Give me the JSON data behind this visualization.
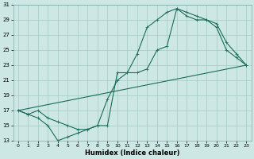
{
  "xlabel": "Humidex (Indice chaleur)",
  "bg_color": "#cde8e4",
  "grid_color": "#a8cec8",
  "line_color": "#1a6b5a",
  "xlim": [
    -0.5,
    23.5
  ],
  "ylim": [
    13,
    31
  ],
  "xticks": [
    0,
    1,
    2,
    3,
    4,
    5,
    6,
    7,
    8,
    9,
    10,
    11,
    12,
    13,
    14,
    15,
    16,
    17,
    18,
    19,
    20,
    21,
    22,
    23
  ],
  "yticks": [
    13,
    15,
    17,
    19,
    21,
    23,
    25,
    27,
    29,
    31
  ],
  "curve1_x": [
    0,
    1,
    2,
    3,
    4,
    5,
    6,
    7,
    8,
    9,
    10,
    11,
    12,
    13,
    14,
    15,
    16,
    17,
    18,
    19,
    20,
    21,
    22,
    23
  ],
  "curve1_y": [
    17,
    16.5,
    16,
    15,
    13,
    13.5,
    14,
    14.5,
    15,
    15,
    22,
    22,
    24.5,
    28,
    29,
    30,
    30.5,
    30,
    29.5,
    29,
    28.5,
    26,
    24.5,
    23
  ],
  "curve2_x": [
    0,
    1,
    2,
    3,
    4,
    5,
    6,
    7,
    8,
    9,
    10,
    11,
    12,
    13,
    14,
    15,
    16,
    17,
    18,
    19,
    20,
    21,
    22,
    23
  ],
  "curve2_y": [
    17,
    16.5,
    17,
    16,
    15.5,
    15,
    14.5,
    14.5,
    15,
    18.5,
    21,
    22,
    22,
    22.5,
    25,
    25.5,
    30.5,
    29.5,
    29,
    29,
    28,
    25,
    24,
    23
  ],
  "curve3_x": [
    0,
    23
  ],
  "curve3_y": [
    17,
    23
  ]
}
